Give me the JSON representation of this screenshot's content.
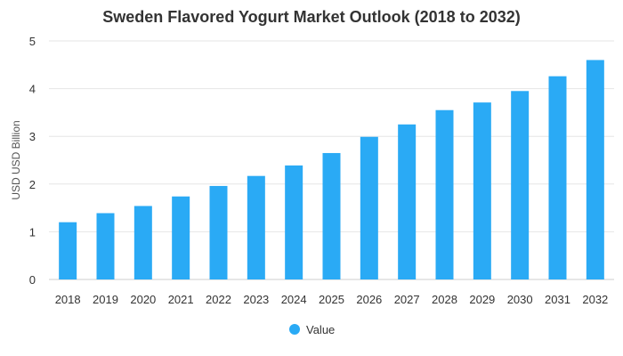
{
  "chart_data": {
    "type": "bar",
    "title": "Sweden Flavored Yogurt Market Outlook (2018 to 2032)",
    "xlabel": "",
    "ylabel": "USD USD Billion",
    "categories": [
      "2018",
      "2019",
      "2020",
      "2021",
      "2022",
      "2023",
      "2024",
      "2025",
      "2026",
      "2027",
      "2028",
      "2029",
      "2030",
      "2031",
      "2032"
    ],
    "series": [
      {
        "name": "Value",
        "color": "#2aaaf5",
        "values": [
          1.2,
          1.39,
          1.54,
          1.74,
          1.96,
          2.17,
          2.39,
          2.65,
          2.99,
          3.25,
          3.55,
          3.71,
          3.95,
          4.26,
          4.6
        ]
      }
    ],
    "ylim": [
      0,
      5
    ],
    "yticks": [
      0,
      1,
      2,
      3,
      4,
      5
    ],
    "grid": true,
    "legend_position": "bottom-center"
  }
}
